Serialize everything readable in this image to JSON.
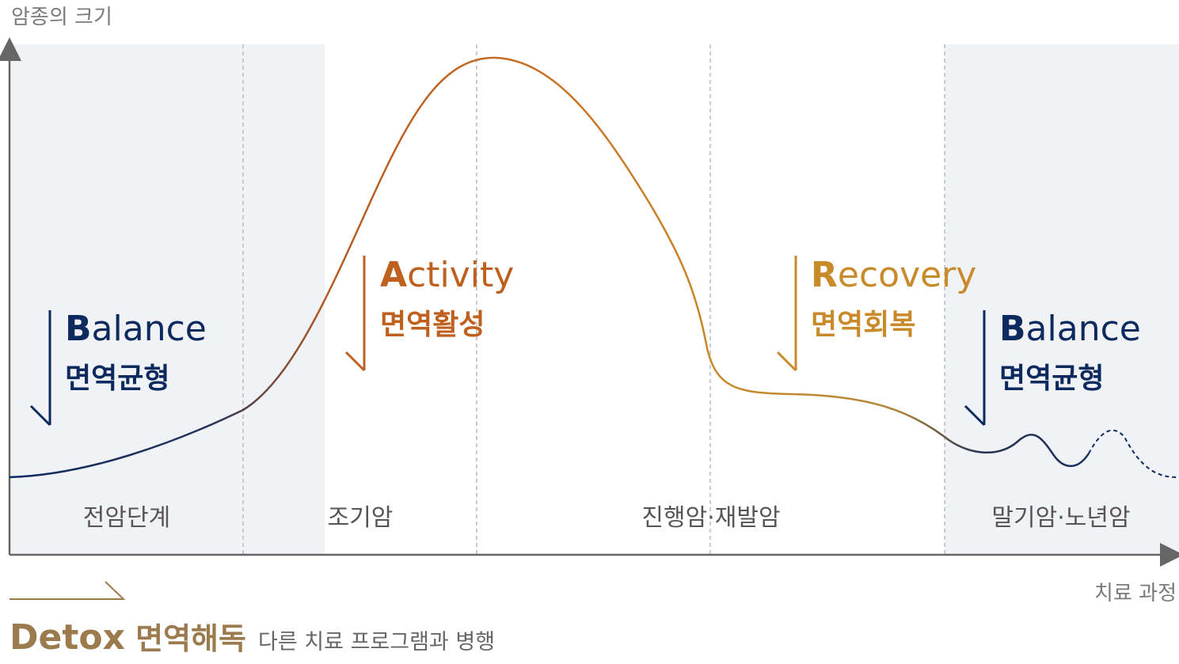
{
  "axes": {
    "y_label": "암종의 크기",
    "x_label": "치료 과정"
  },
  "stages": [
    {
      "label": "전암단계"
    },
    {
      "label": "조기암"
    },
    {
      "label": "진행암·재발암"
    },
    {
      "label": "말기암·노년암"
    }
  ],
  "phases": {
    "balance_left": {
      "initial": "B",
      "rest": "alance",
      "korean": "면역균형"
    },
    "activity": {
      "initial": "A",
      "rest": "ctivity",
      "korean": "면역활성"
    },
    "recovery": {
      "initial": "R",
      "rest": "ecovery",
      "korean": "면역회복"
    },
    "balance_right": {
      "initial": "B",
      "rest": "alance",
      "korean": "면역균형"
    }
  },
  "detox": {
    "english": "Detox",
    "korean": "면역해독",
    "note": "다른 치료 프로그램과 병행"
  },
  "colors": {
    "balance": "#0d2a5e",
    "activity": "#c0601e",
    "recovery": "#c98a2a",
    "detox": "#9b7a4e",
    "shade": "#f0f2f6",
    "axis": "#666666",
    "divider": "#bbbbbb"
  }
}
